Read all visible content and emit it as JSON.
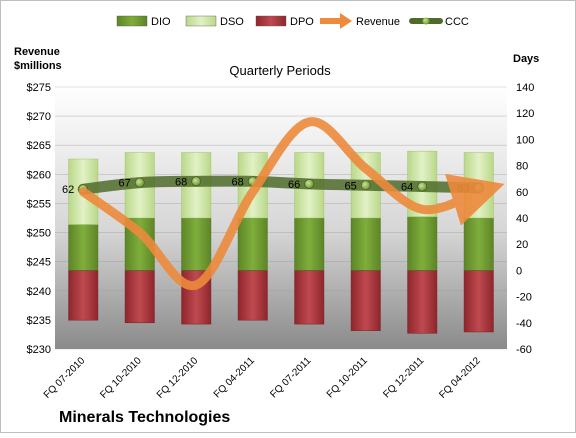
{
  "chart_data": {
    "type": "bar",
    "title": "Quarterly Periods",
    "company": "Minerals Technologies",
    "left_axis_label": [
      "Revenue",
      "$millions"
    ],
    "right_axis_label": "Days",
    "categories": [
      "FQ 07-2010",
      "FQ 10-2010",
      "FQ 12-2010",
      "FQ 04-2011",
      "FQ 07-2011",
      "FQ 10-2011",
      "FQ 12-2011",
      "FQ 04-2012"
    ],
    "series": [
      {
        "name": "DIO",
        "axis": "right",
        "kind": "stacked-bar",
        "values": [
          35,
          40,
          40,
          40,
          40,
          40,
          41,
          40
        ]
      },
      {
        "name": "DSO",
        "axis": "right",
        "kind": "stacked-bar",
        "values": [
          50,
          50,
          50,
          50,
          50,
          50,
          50,
          50
        ]
      },
      {
        "name": "DPO",
        "axis": "right",
        "kind": "negative-bar",
        "values": [
          38,
          40,
          41,
          38,
          41,
          46,
          48,
          47
        ]
      },
      {
        "name": "Revenue",
        "axis": "left",
        "kind": "line",
        "values": [
          257,
          250,
          241,
          257,
          269,
          261,
          254,
          257
        ]
      },
      {
        "name": "CCC",
        "axis": "right",
        "kind": "line",
        "values": [
          62,
          67,
          68,
          68,
          66,
          65,
          64,
          63
        ]
      }
    ],
    "left_axis": {
      "min": 230,
      "max": 275,
      "step": 5,
      "prefix": "$"
    },
    "right_axis": {
      "min": -60,
      "max": 140,
      "step": 20
    },
    "colors": {
      "DIO": "#6f9a2e",
      "DSO": "#cfe6a4",
      "DPO": "#a8353b",
      "Revenue": "#ed8a3c",
      "CCC": "#4f6b2a"
    },
    "legend_position": "top"
  }
}
